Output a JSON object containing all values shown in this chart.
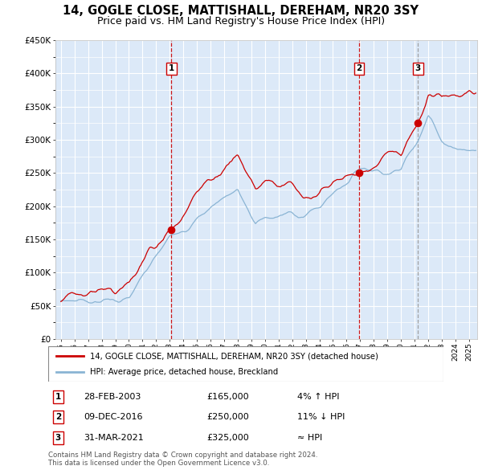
{
  "title": "14, GOGLE CLOSE, MATTISHALL, DEREHAM, NR20 3SY",
  "subtitle": "Price paid vs. HM Land Registry's House Price Index (HPI)",
  "legend_line1": "14, GOGLE CLOSE, MATTISHALL, DEREHAM, NR20 3SY (detached house)",
  "legend_line2": "HPI: Average price, detached house, Breckland",
  "footer1": "Contains HM Land Registry data © Crown copyright and database right 2024.",
  "footer2": "This data is licensed under the Open Government Licence v3.0.",
  "sale_points": [
    {
      "label": "1",
      "date": "28-FEB-2003",
      "price": 165000,
      "x_year": 2003.12,
      "hpi_note": "4% ↑ HPI"
    },
    {
      "label": "2",
      "date": "09-DEC-2016",
      "price": 250000,
      "x_year": 2016.92,
      "hpi_note": "11% ↓ HPI"
    },
    {
      "label": "3",
      "date": "31-MAR-2021",
      "price": 325000,
      "x_year": 2021.25,
      "hpi_note": "≈ HPI"
    }
  ],
  "ylim": [
    0,
    450000
  ],
  "xlim_start": 1994.6,
  "xlim_end": 2025.6,
  "background_color": "#dce9f8",
  "grid_color": "#ffffff",
  "red_line_color": "#cc0000",
  "blue_line_color": "#8ab4d4",
  "sale_marker_color": "#cc0000",
  "dashed_red_color": "#cc0000",
  "dashed_gray_color": "#999999"
}
